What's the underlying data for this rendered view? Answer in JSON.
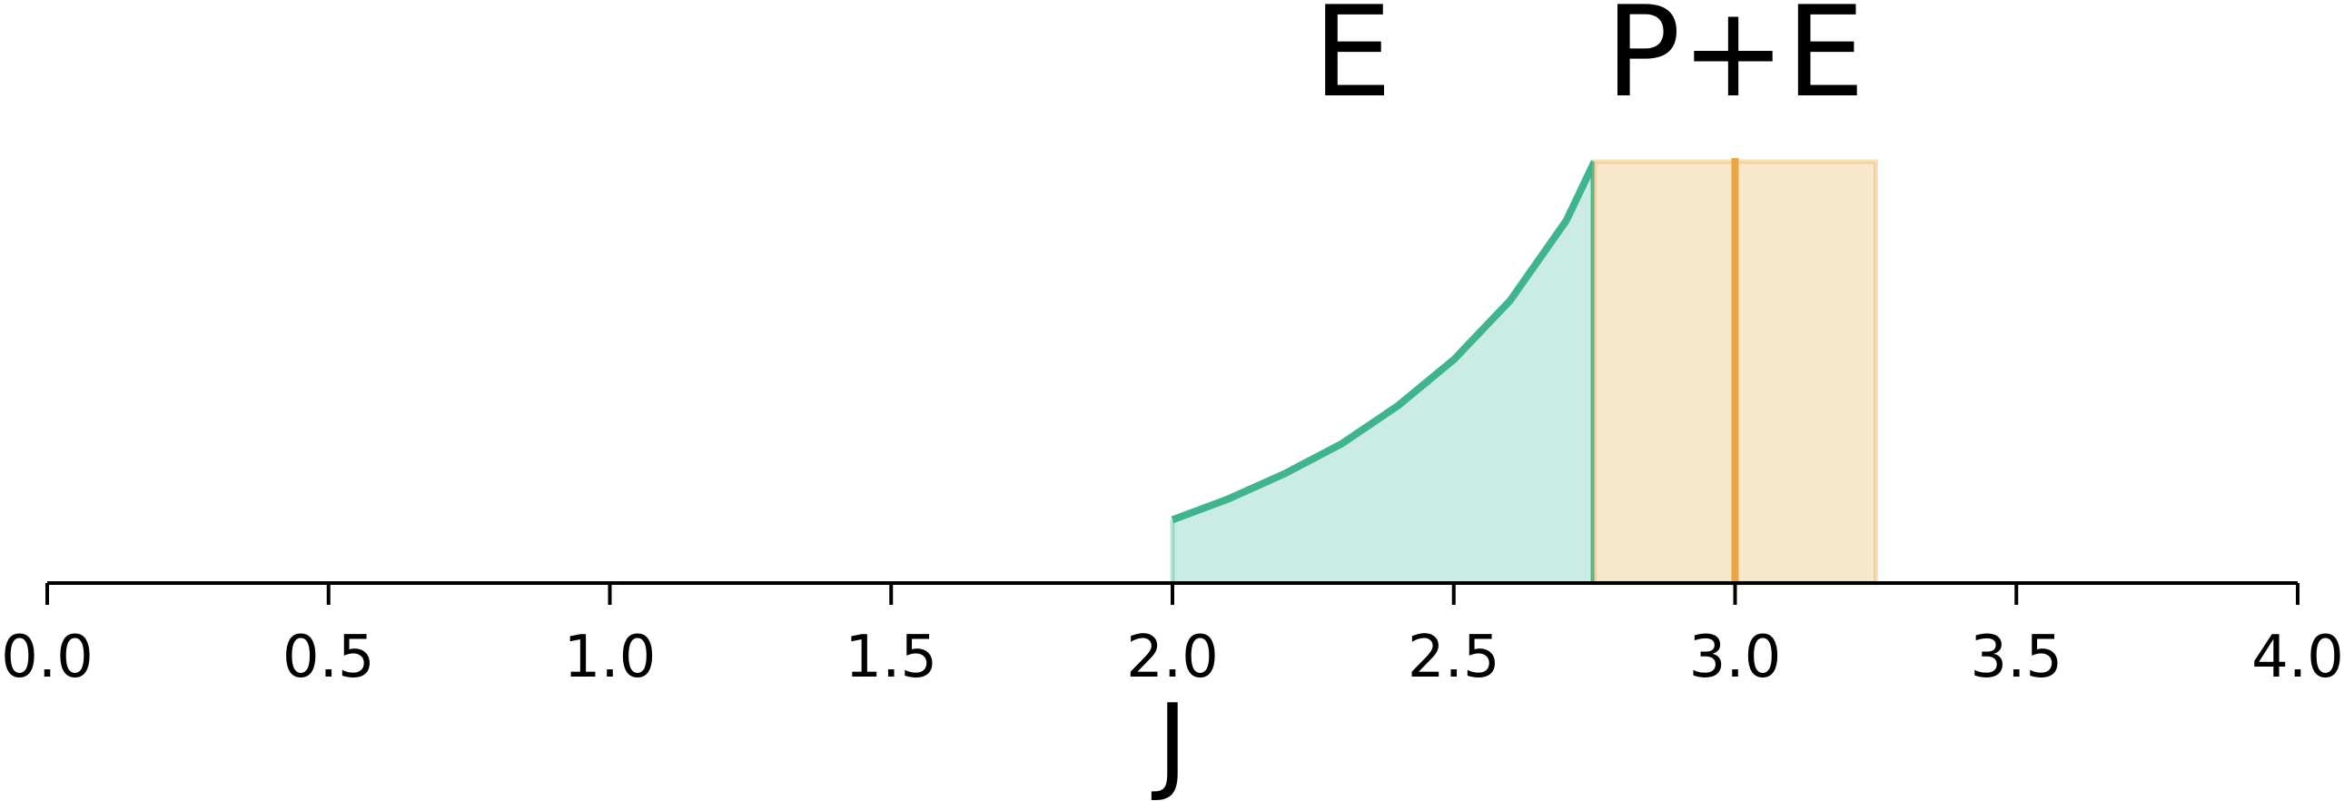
{
  "chart_data": {
    "type": "area",
    "xlabel": "J",
    "xlim": [
      0.0,
      4.0
    ],
    "ylim": [
      0.0,
      1.0
    ],
    "y_axis_visible": false,
    "grid": false,
    "x_ticks": [
      {
        "value": 0.0,
        "label": "0.0"
      },
      {
        "value": 0.5,
        "label": "0.5"
      },
      {
        "value": 1.0,
        "label": "1.0"
      },
      {
        "value": 1.5,
        "label": "1.5"
      },
      {
        "value": 2.0,
        "label": "2.0"
      },
      {
        "value": 2.5,
        "label": "2.5"
      },
      {
        "value": 3.0,
        "label": "3.0"
      },
      {
        "value": 3.5,
        "label": "3.5"
      },
      {
        "value": 4.0,
        "label": "4.0"
      }
    ],
    "regions": [
      {
        "label": "E",
        "color": "#3fb48f",
        "fill_color": "#cbece2",
        "label_x": 2.32,
        "x": [
          2.0,
          2.1,
          2.2,
          2.3,
          2.4,
          2.5,
          2.6,
          2.7,
          2.75
        ],
        "y": [
          0.15,
          0.2,
          0.26,
          0.33,
          0.42,
          0.53,
          0.67,
          0.86,
          1.0
        ]
      },
      {
        "label": "P+E",
        "color": "#e9a640",
        "fill_color": "#f7e8cc",
        "label_x": 3.0,
        "x_range": [
          2.75,
          3.25
        ],
        "height": 1.0,
        "center_line": 3.0
      }
    ]
  }
}
